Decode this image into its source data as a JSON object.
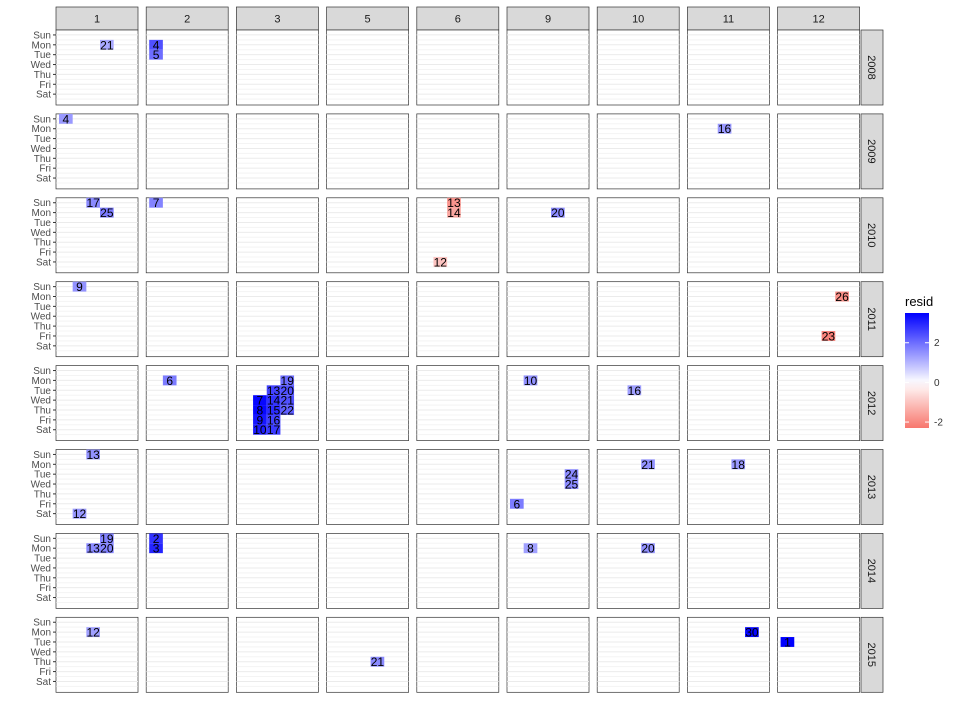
{
  "chart_data": {
    "type": "heatmap",
    "facet_columns": [
      "1",
      "2",
      "3",
      "5",
      "6",
      "9",
      "10",
      "11",
      "12"
    ],
    "facet_rows": [
      "2008",
      "2009",
      "2010",
      "2011",
      "2012",
      "2013",
      "2014",
      "2015"
    ],
    "y_categories": [
      "Sun",
      "Mon",
      "Tue",
      "Wed",
      "Thu",
      "Fri",
      "Sat"
    ],
    "legend": {
      "title": "resid",
      "ticks": [
        2,
        0,
        -2
      ],
      "range": [
        -2.3,
        3.5
      ],
      "low_color": "#f8766d",
      "mid_color": "#ffffff",
      "high_color": "#0000ff"
    },
    "cells": [
      {
        "year": "2008",
        "month": "1",
        "week": 4,
        "day": "Mon",
        "label": "21",
        "resid": 1.2
      },
      {
        "year": "2008",
        "month": "2",
        "week": 1,
        "day": "Mon",
        "label": "4",
        "resid": 2.4
      },
      {
        "year": "2008",
        "month": "2",
        "week": 1,
        "day": "Tue",
        "label": "5",
        "resid": 2.0
      },
      {
        "year": "2009",
        "month": "1",
        "week": 1,
        "day": "Sun",
        "label": "4",
        "resid": 1.4
      },
      {
        "year": "2009",
        "month": "11",
        "week": 3,
        "day": "Mon",
        "label": "16",
        "resid": 1.4
      },
      {
        "year": "2010",
        "month": "1",
        "week": 3,
        "day": "Sun",
        "label": "17",
        "resid": 1.6
      },
      {
        "year": "2010",
        "month": "1",
        "week": 4,
        "day": "Mon",
        "label": "25",
        "resid": 1.8
      },
      {
        "year": "2010",
        "month": "2",
        "week": 1,
        "day": "Sun",
        "label": "7",
        "resid": 1.7
      },
      {
        "year": "2010",
        "month": "6",
        "week": 3,
        "day": "Sun",
        "label": "13",
        "resid": -1.8
      },
      {
        "year": "2010",
        "month": "6",
        "week": 3,
        "day": "Mon",
        "label": "14",
        "resid": -1.5
      },
      {
        "year": "2010",
        "month": "6",
        "week": 2,
        "day": "Sat",
        "label": "12",
        "resid": -1.0
      },
      {
        "year": "2010",
        "month": "9",
        "week": 4,
        "day": "Mon",
        "label": "20",
        "resid": 1.6
      },
      {
        "year": "2011",
        "month": "1",
        "week": 2,
        "day": "Sun",
        "label": "9",
        "resid": 1.5
      },
      {
        "year": "2011",
        "month": "12",
        "week": 5,
        "day": "Mon",
        "label": "26",
        "resid": -1.9
      },
      {
        "year": "2011",
        "month": "12",
        "week": 4,
        "day": "Fri",
        "label": "23",
        "resid": -2.1
      },
      {
        "year": "2012",
        "month": "2",
        "week": 2,
        "day": "Mon",
        "label": "6",
        "resid": 1.8
      },
      {
        "year": "2012",
        "month": "3",
        "week": 4,
        "day": "Mon",
        "label": "19",
        "resid": 2.0
      },
      {
        "year": "2012",
        "month": "3",
        "week": 3,
        "day": "Tue",
        "label": "13",
        "resid": 2.6
      },
      {
        "year": "2012",
        "month": "3",
        "week": 4,
        "day": "Tue",
        "label": "20",
        "resid": 2.4
      },
      {
        "year": "2012",
        "month": "3",
        "week": 2,
        "day": "Wed",
        "label": "7",
        "resid": 3.4
      },
      {
        "year": "2012",
        "month": "3",
        "week": 3,
        "day": "Wed",
        "label": "14",
        "resid": 2.8
      },
      {
        "year": "2012",
        "month": "3",
        "week": 4,
        "day": "Wed",
        "label": "21",
        "resid": 2.4
      },
      {
        "year": "2012",
        "month": "3",
        "week": 2,
        "day": "Thu",
        "label": "8",
        "resid": 3.4
      },
      {
        "year": "2012",
        "month": "3",
        "week": 3,
        "day": "Thu",
        "label": "15",
        "resid": 2.9
      },
      {
        "year": "2012",
        "month": "3",
        "week": 4,
        "day": "Thu",
        "label": "22",
        "resid": 2.2
      },
      {
        "year": "2012",
        "month": "3",
        "week": 2,
        "day": "Fri",
        "label": "9",
        "resid": 3.2
      },
      {
        "year": "2012",
        "month": "3",
        "week": 3,
        "day": "Fri",
        "label": "16",
        "resid": 2.6
      },
      {
        "year": "2012",
        "month": "3",
        "week": 2,
        "day": "Sat",
        "label": "10",
        "resid": 3.1
      },
      {
        "year": "2012",
        "month": "3",
        "week": 3,
        "day": "Sat",
        "label": "17",
        "resid": 2.7
      },
      {
        "year": "2012",
        "month": "9",
        "week": 2,
        "day": "Mon",
        "label": "10",
        "resid": 1.5
      },
      {
        "year": "2012",
        "month": "10",
        "week": 3,
        "day": "Tue",
        "label": "16",
        "resid": 1.3
      },
      {
        "year": "2013",
        "month": "1",
        "week": 3,
        "day": "Sun",
        "label": "13",
        "resid": 1.5
      },
      {
        "year": "2013",
        "month": "1",
        "week": 2,
        "day": "Sat",
        "label": "12",
        "resid": 1.4
      },
      {
        "year": "2013",
        "month": "9",
        "week": 5,
        "day": "Tue",
        "label": "24",
        "resid": 1.6
      },
      {
        "year": "2013",
        "month": "9",
        "week": 5,
        "day": "Wed",
        "label": "25",
        "resid": 1.6
      },
      {
        "year": "2013",
        "month": "9",
        "week": 1,
        "day": "Fri",
        "label": "6",
        "resid": 1.8
      },
      {
        "year": "2013",
        "month": "10",
        "week": 4,
        "day": "Mon",
        "label": "21",
        "resid": 1.5
      },
      {
        "year": "2013",
        "month": "11",
        "week": 4,
        "day": "Mon",
        "label": "18",
        "resid": 1.4
      },
      {
        "year": "2014",
        "month": "1",
        "week": 4,
        "day": "Sun",
        "label": "19",
        "resid": 1.7
      },
      {
        "year": "2014",
        "month": "1",
        "week": 3,
        "day": "Mon",
        "label": "13",
        "resid": 1.6
      },
      {
        "year": "2014",
        "month": "1",
        "week": 4,
        "day": "Mon",
        "label": "20",
        "resid": 1.7
      },
      {
        "year": "2014",
        "month": "2",
        "week": 1,
        "day": "Sun",
        "label": "2",
        "resid": 2.8
      },
      {
        "year": "2014",
        "month": "2",
        "week": 1,
        "day": "Mon",
        "label": "3",
        "resid": 3.0
      },
      {
        "year": "2014",
        "month": "9",
        "week": 2,
        "day": "Mon",
        "label": "8",
        "resid": 1.3
      },
      {
        "year": "2014",
        "month": "10",
        "week": 4,
        "day": "Mon",
        "label": "20",
        "resid": 1.5
      },
      {
        "year": "2015",
        "month": "1",
        "week": 3,
        "day": "Mon",
        "label": "12",
        "resid": 1.3
      },
      {
        "year": "2015",
        "month": "5",
        "week": 4,
        "day": "Thu",
        "label": "21",
        "resid": 1.6
      },
      {
        "year": "2015",
        "month": "11",
        "week": 5,
        "day": "Mon",
        "label": "30",
        "resid": 3.4
      },
      {
        "year": "2015",
        "month": "12",
        "week": 1,
        "day": "Tue",
        "label": "1",
        "resid": 3.5
      }
    ]
  }
}
